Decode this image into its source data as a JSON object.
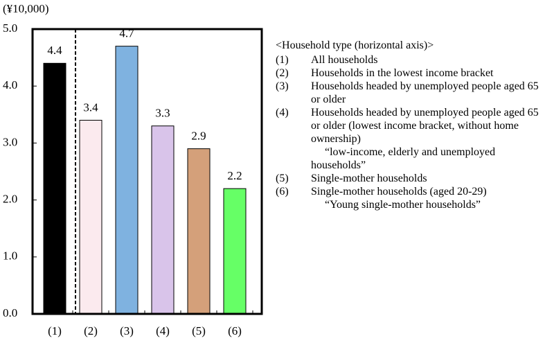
{
  "chart_data": {
    "type": "bar",
    "y_label": "(¥10,000)",
    "categories": [
      "(1)",
      "(2)",
      "(3)",
      "(4)",
      "(5)",
      "(6)"
    ],
    "values": [
      4.4,
      3.4,
      4.7,
      3.3,
      2.9,
      2.2
    ],
    "colors": [
      "#000000",
      "#fbeaee",
      "#7fb2e0",
      "#d9c4ea",
      "#d4a07a",
      "#66ff66"
    ],
    "ylim": [
      0,
      5
    ],
    "yticks": [
      {
        "value": 0,
        "label": "0.0"
      },
      {
        "value": 1,
        "label": "1.0"
      },
      {
        "value": 2,
        "label": "2.0"
      },
      {
        "value": 3,
        "label": "3.0"
      },
      {
        "value": 4,
        "label": "4.0"
      },
      {
        "value": 5,
        "label": "5.0"
      }
    ],
    "legend_title": "<Household type (horizontal axis)>",
    "notes": [
      {
        "marker": "(1)",
        "text": "All households"
      },
      {
        "marker": "(2)",
        "text": "Households in the lowest income bracket"
      },
      {
        "marker": "(3)",
        "text": "Households headed by unemployed people aged 65 or older"
      },
      {
        "marker": "(4)",
        "text": "Households headed by unemployed people aged 65 or older (lowest income bracket, without home ownership)",
        "sub": "“low-income, elderly and unemployed households”"
      },
      {
        "marker": "(5)",
        "text": "Single-mother households"
      },
      {
        "marker": "(6)",
        "text": "Single-mother households (aged 20-29)",
        "sub": "“Young single-mother households”"
      }
    ]
  }
}
